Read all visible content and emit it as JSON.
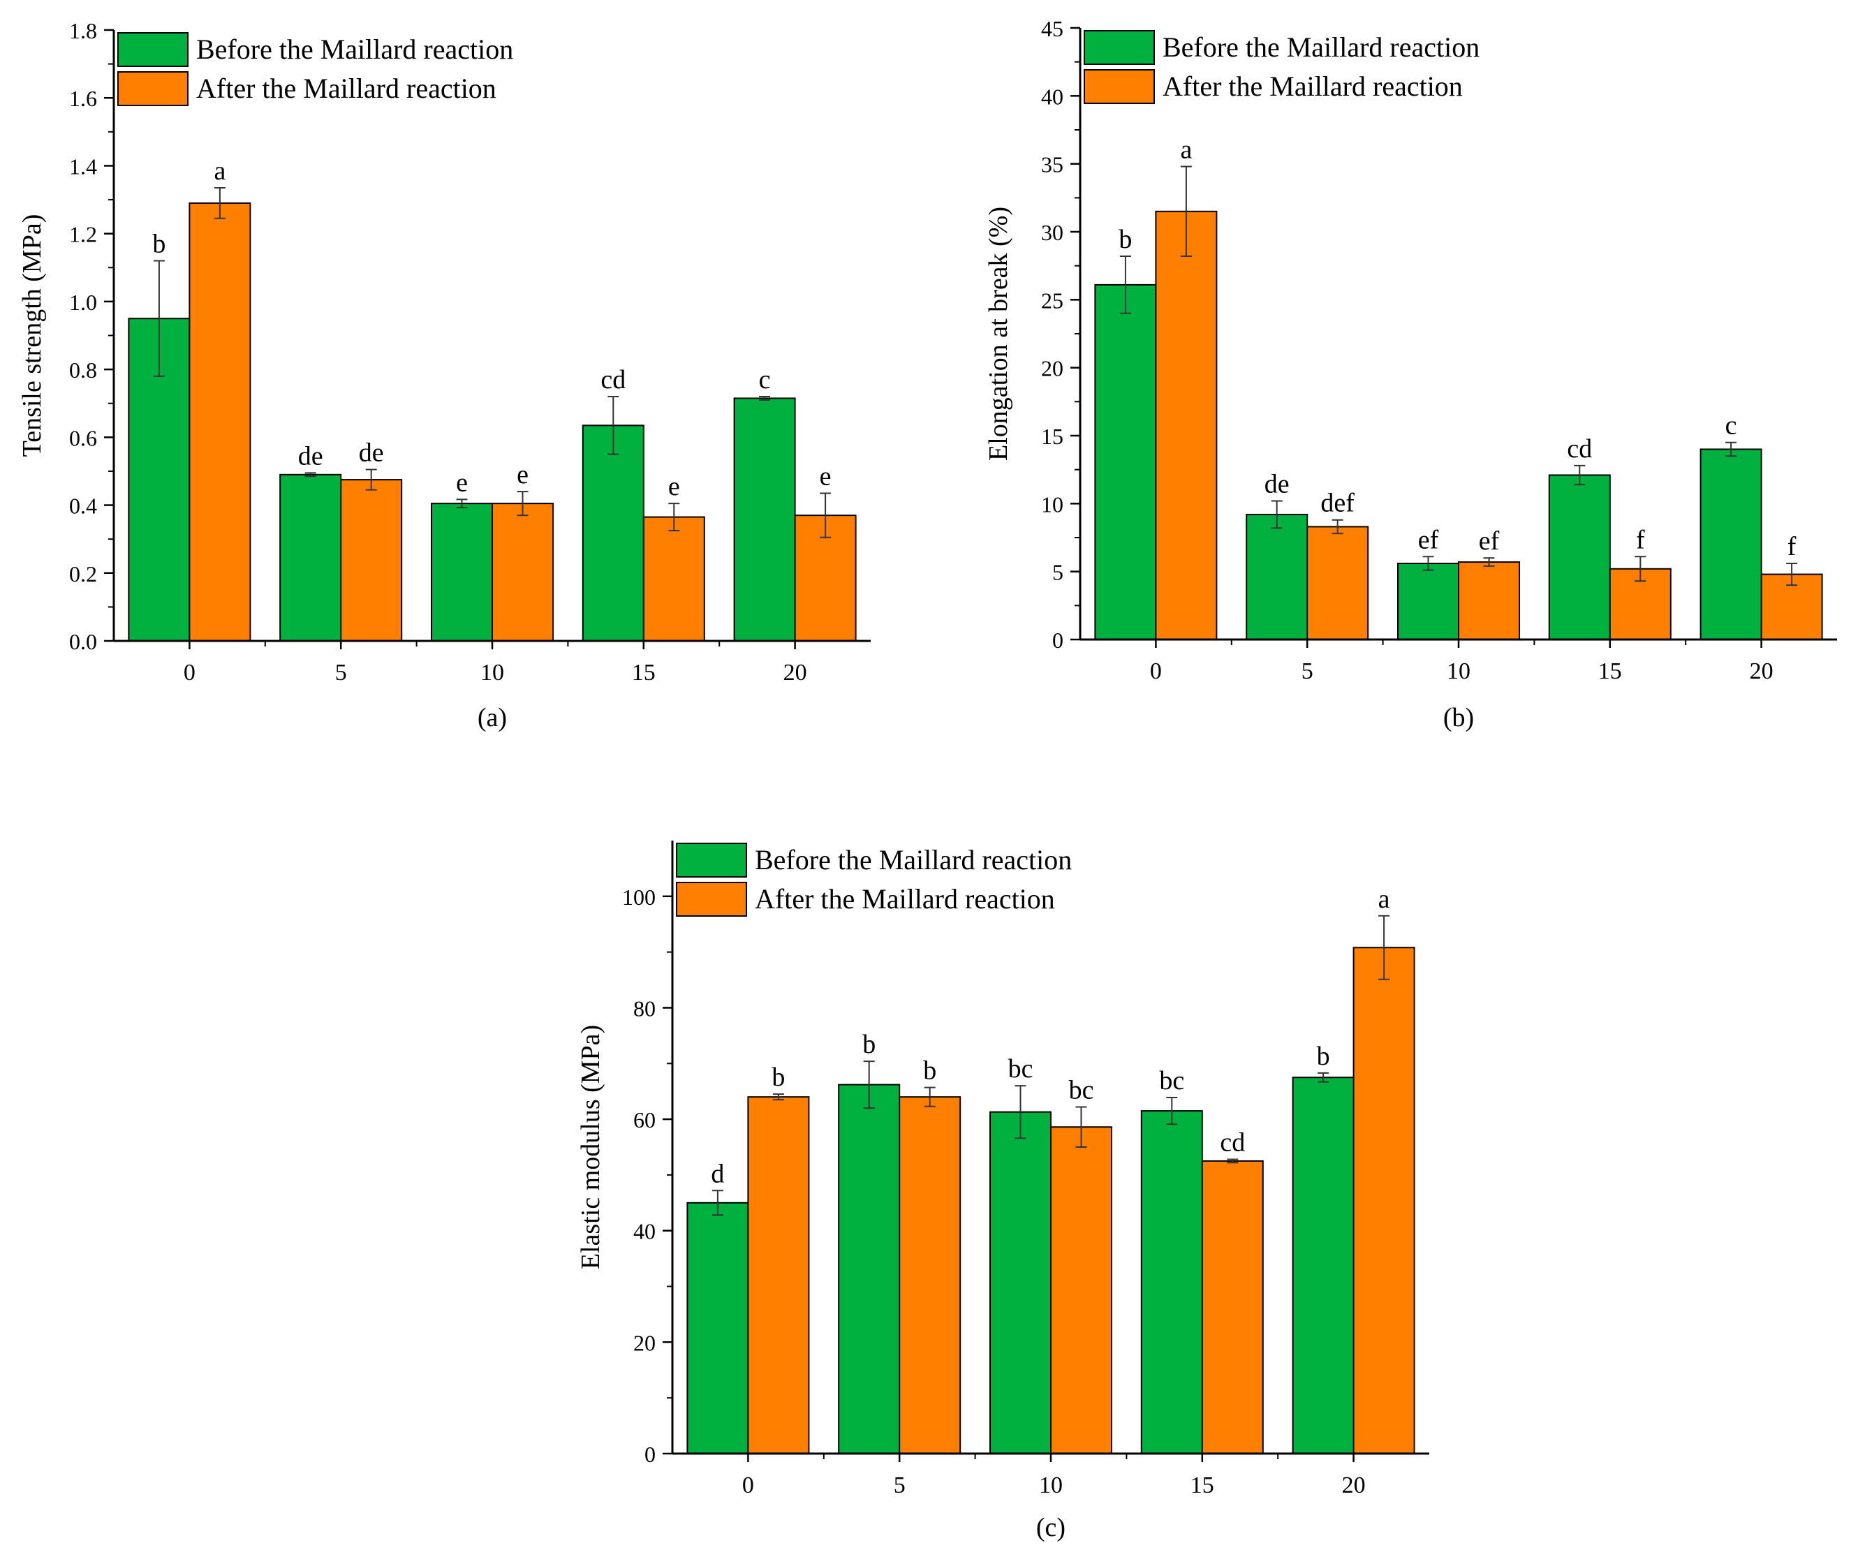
{
  "chart_data": [
    {
      "type": "bar",
      "title": "",
      "caption": "(a)",
      "xlabel": "",
      "ylabel": "Tensile strength (MPa)",
      "categories": [
        "0",
        "5",
        "10",
        "15",
        "20"
      ],
      "ylim": [
        0,
        1.8
      ],
      "yticks": [
        0.0,
        0.2,
        0.4,
        0.6,
        0.8,
        1.0,
        1.2,
        1.4,
        1.6,
        1.8
      ],
      "ytick_labels": [
        "0.0",
        "0.2",
        "0.4",
        "0.6",
        "0.8",
        "1.0",
        "1.2",
        "1.4",
        "1.6",
        "1.8"
      ],
      "legend_position": "top-left",
      "series": [
        {
          "name": "Before the Maillard reaction",
          "color": "#00b140",
          "values": [
            0.95,
            0.49,
            0.405,
            0.635,
            0.715
          ],
          "errors": [
            0.17,
            0.005,
            0.012,
            0.085,
            0.005
          ],
          "letters": [
            "b",
            "de",
            "e",
            "cd",
            "c"
          ]
        },
        {
          "name": "After the Maillard reaction",
          "color": "#ff8000",
          "values": [
            1.29,
            0.475,
            0.405,
            0.365,
            0.37
          ],
          "errors": [
            0.045,
            0.03,
            0.035,
            0.04,
            0.065
          ],
          "letters": [
            "a",
            "de",
            "e",
            "e",
            "e"
          ]
        }
      ]
    },
    {
      "type": "bar",
      "title": "",
      "caption": "(b)",
      "xlabel": "",
      "ylabel": "Elongation at break (%)",
      "categories": [
        "0",
        "5",
        "10",
        "15",
        "20"
      ],
      "ylim": [
        0,
        45
      ],
      "yticks": [
        0,
        5,
        10,
        15,
        20,
        25,
        30,
        35,
        40,
        45
      ],
      "ytick_labels": [
        "0",
        "5",
        "10",
        "15",
        "20",
        "25",
        "30",
        "35",
        "40",
        "45"
      ],
      "legend_position": "top-left",
      "series": [
        {
          "name": "Before the Maillard reaction",
          "color": "#00b140",
          "values": [
            26.1,
            9.2,
            5.6,
            12.1,
            14.0
          ],
          "errors": [
            2.1,
            1.0,
            0.5,
            0.7,
            0.5
          ],
          "letters": [
            "b",
            "de",
            "ef",
            "cd",
            "c"
          ]
        },
        {
          "name": "After the Maillard reaction",
          "color": "#ff8000",
          "values": [
            31.5,
            8.3,
            5.7,
            5.2,
            4.8
          ],
          "errors": [
            3.3,
            0.5,
            0.3,
            0.9,
            0.8
          ],
          "letters": [
            "a",
            "def",
            "ef",
            "f",
            "f"
          ]
        }
      ]
    },
    {
      "type": "bar",
      "title": "",
      "caption": "(c)",
      "xlabel": "",
      "ylabel": "Elastic modulus (MPa)",
      "categories": [
        "0",
        "5",
        "10",
        "15",
        "20"
      ],
      "ylim": [
        0,
        110
      ],
      "yticks": [
        0,
        20,
        40,
        60,
        80,
        100
      ],
      "ytick_labels": [
        "0",
        "20",
        "40",
        "60",
        "80",
        "100"
      ],
      "legend_position": "top-left",
      "series": [
        {
          "name": "Before the Maillard reaction",
          "color": "#00b140",
          "values": [
            45.0,
            66.2,
            61.3,
            61.5,
            67.5
          ],
          "errors": [
            2.2,
            4.2,
            4.7,
            2.4,
            0.8
          ],
          "letters": [
            "d",
            "b",
            "bc",
            "bc",
            "b"
          ]
        },
        {
          "name": "After the Maillard reaction",
          "color": "#ff8000",
          "values": [
            64.0,
            64.0,
            58.6,
            52.5,
            90.8
          ],
          "errors": [
            0.5,
            1.7,
            3.6,
            0.3,
            5.7
          ],
          "letters": [
            "b",
            "b",
            "bc",
            "cd",
            "a"
          ]
        }
      ]
    }
  ]
}
